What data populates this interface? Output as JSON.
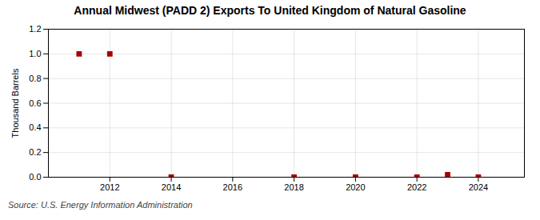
{
  "chart_data": {
    "type": "scatter",
    "title": "Annual Midwest (PADD 2) Exports To United Kingdom of Natural Gasoline",
    "ylabel": "Thousand Barrels",
    "source": "Source: U.S. Energy Information Administration",
    "x": [
      2011,
      2012,
      2014,
      2018,
      2020,
      2022,
      2023,
      2024
    ],
    "values": [
      1.0,
      1.0,
      0.0,
      0.0,
      0.0,
      0.0,
      0.02,
      0.0
    ],
    "color": "#aa0000",
    "marker": "square",
    "xlim": [
      2010,
      2025.5
    ],
    "ylim": [
      0.0,
      1.2
    ],
    "xticks": [
      2012,
      2014,
      2016,
      2018,
      2020,
      2022,
      2024
    ],
    "yticks": [
      {
        "value": 0,
        "label": "0.0"
      },
      0.2,
      0.4,
      0.6,
      0.8,
      {
        "value": 1,
        "label": "1.0"
      },
      1.2
    ],
    "grid": true
  }
}
